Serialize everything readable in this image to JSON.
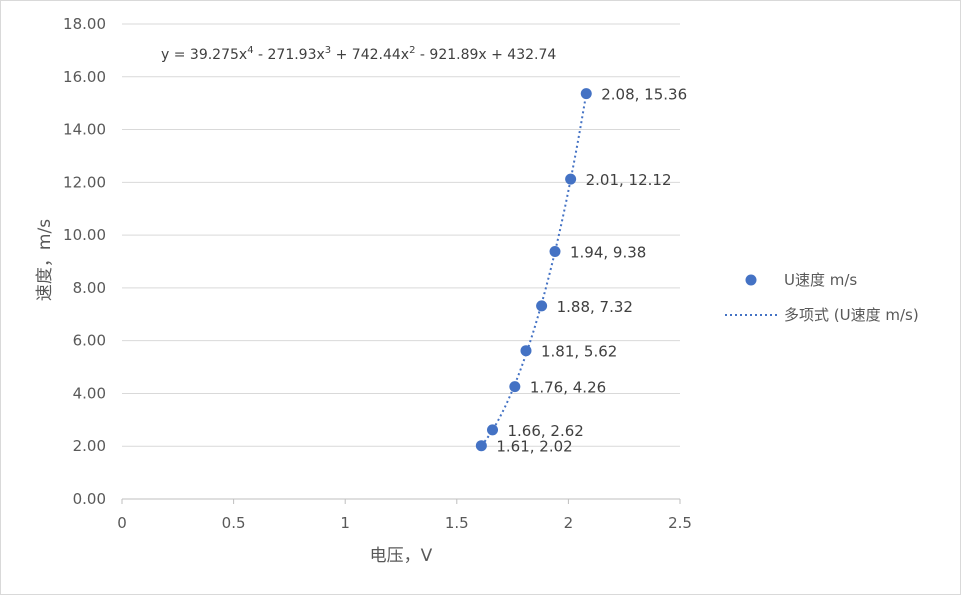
{
  "chart_data": {
    "type": "scatter",
    "xlabel": "电压，V",
    "ylabel": "速度，m/s",
    "xlim": [
      0,
      2.5
    ],
    "ylim": [
      0,
      18
    ],
    "x_ticks": [
      "0",
      "0.5",
      "1",
      "1.5",
      "2",
      "2.5"
    ],
    "y_ticks": [
      "0.00",
      "2.00",
      "4.00",
      "6.00",
      "8.00",
      "10.00",
      "12.00",
      "14.00",
      "16.00",
      "18.00"
    ],
    "grid": "horizontal",
    "legend_position": "right",
    "series": [
      {
        "name": "U速度 m/s",
        "color": "#4472c4",
        "x": [
          1.61,
          1.66,
          1.76,
          1.81,
          1.88,
          1.94,
          2.01,
          2.08
        ],
        "y": [
          2.02,
          2.62,
          4.26,
          5.62,
          7.32,
          9.38,
          12.12,
          15.36
        ],
        "labels": [
          "1.61, 2.02",
          "1.66, 2.62",
          "1.76, 4.26",
          "1.81, 5.62",
          "1.88, 7.32",
          "1.94, 9.38",
          "2.01, 12.12",
          "2.08, 15.36"
        ]
      }
    ],
    "trendline": {
      "name": "多项式 (U速度 m/s)",
      "type": "polynomial",
      "order": 4,
      "coefficients": [
        39.275,
        -271.93,
        742.44,
        -921.89,
        432.74
      ],
      "equation": {
        "p1": "y = 39.275x",
        "e1": "4",
        "p2": " - 271.93x",
        "e2": "3",
        "p3": " + 742.44x",
        "e3": "2",
        "p4": " - 921.89x + 432.74"
      },
      "color": "#4472c4",
      "style": "dotted"
    }
  }
}
